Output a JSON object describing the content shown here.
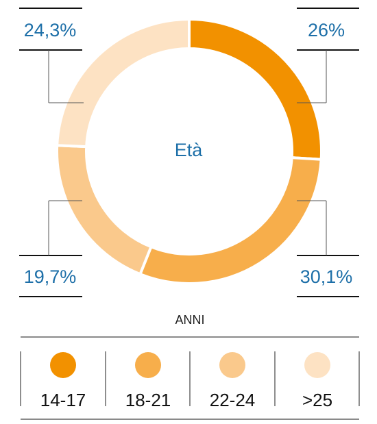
{
  "chart_data": {
    "type": "pie",
    "title": "Età",
    "axis_title": "ANNI",
    "categories": [
      "14-17",
      "18-21",
      "22-24",
      ">25"
    ],
    "values": [
      26,
      30.1,
      19.7,
      24.3
    ],
    "value_labels": [
      "26%",
      "30,1%",
      "19,7%",
      "24,3%"
    ],
    "colors": [
      "#f29100",
      "#f7ae4b",
      "#fac98c",
      "#fde2c3"
    ],
    "legend_placement": "bottom"
  }
}
